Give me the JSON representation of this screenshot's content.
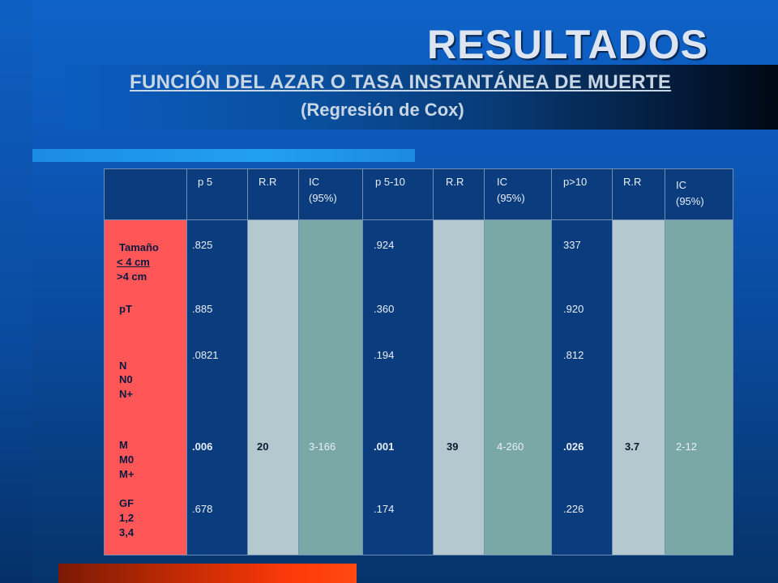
{
  "slide": {
    "title": "RESULTADOS",
    "subtitle": "FUNCIÓN DEL AZAR O TASA INSTANTÁNEA DE MUERTE",
    "subtitle2": "(Regresión de Cox)"
  },
  "table": {
    "headers": [
      "",
      "p 5",
      "R.R",
      "IC\n(95%)",
      "p 5-10",
      "R.R",
      "IC\n(95%)",
      "p>10",
      "R.R",
      "IC\n(95%)"
    ],
    "row_labels": {
      "tamano": "Tamaño",
      "le4": "< 4 cm",
      "gt4": ">4 cm",
      "pt": "pT",
      "n": "N",
      "n0": "N0",
      "nplus": "N+",
      "m": "M",
      "m0": "M0",
      "mplus": "M+",
      "gf": "GF",
      "gf12": "1,2",
      "gf34": "3,4"
    },
    "p5": {
      "tamano": ".825",
      "pt": ".885",
      "n": ".0821",
      "m": ".006",
      "gf": ".678"
    },
    "rr1": {
      "m": "20"
    },
    "ic1": {
      "m": "3-166"
    },
    "p510": {
      "tamano": ".924",
      "pt": ".360",
      "n": ".194",
      "m": ".001",
      "gf": ".174"
    },
    "rr2": {
      "m": "39"
    },
    "ic2": {
      "m": "4-260"
    },
    "p10": {
      "tamano": "337",
      "pt": ".920",
      "n": ".812",
      "m": ".026",
      "gf": ".226"
    },
    "rr3": {
      "m": "3.7"
    },
    "ic3": {
      "m": "2-12"
    }
  }
}
